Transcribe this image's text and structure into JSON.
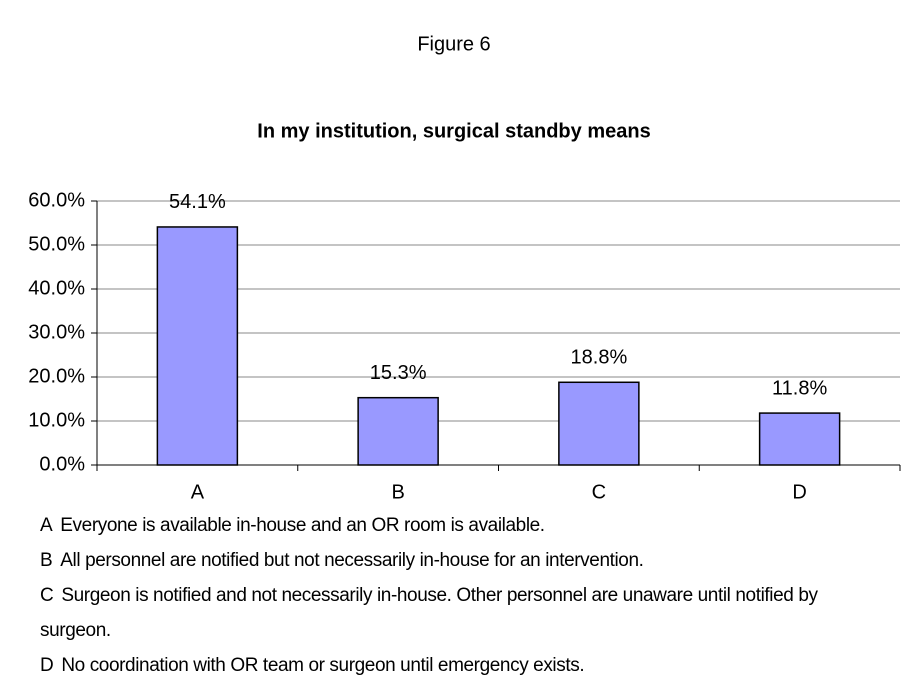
{
  "chart_data": {
    "type": "bar",
    "figure_label": "Figure 6",
    "title": "In my institution, surgical standby means",
    "categories": [
      "A",
      "B",
      "C",
      "D"
    ],
    "values": [
      54.1,
      15.3,
      18.8,
      11.8
    ],
    "value_labels": [
      "54.1%",
      "15.3%",
      "18.8%",
      "11.8%"
    ],
    "color": "#9999ff",
    "ylim": [
      0,
      60
    ],
    "yticks": [
      {
        "value": 0,
        "label": "0.0%"
      },
      {
        "value": 10,
        "label": "10.0%"
      },
      {
        "value": 20,
        "label": "20.0%"
      },
      {
        "value": 30,
        "label": "30.0%"
      },
      {
        "value": 40,
        "label": "40.0%"
      },
      {
        "value": 50,
        "label": "50.0%"
      },
      {
        "value": 60,
        "label": "60.0%"
      }
    ],
    "grid": true,
    "notes": [
      {
        "key": "A",
        "text": "Everyone is available in-house and an OR room is available."
      },
      {
        "key": "B",
        "text": "All personnel are notified but not necessarily in-house for an intervention."
      },
      {
        "key": "C",
        "text": "Surgeon is notified and not necessarily in-house.  Other personnel are unaware until notified by surgeon."
      },
      {
        "key": "D",
        "text": "No coordination with OR team or surgeon until emergency exists."
      }
    ]
  }
}
